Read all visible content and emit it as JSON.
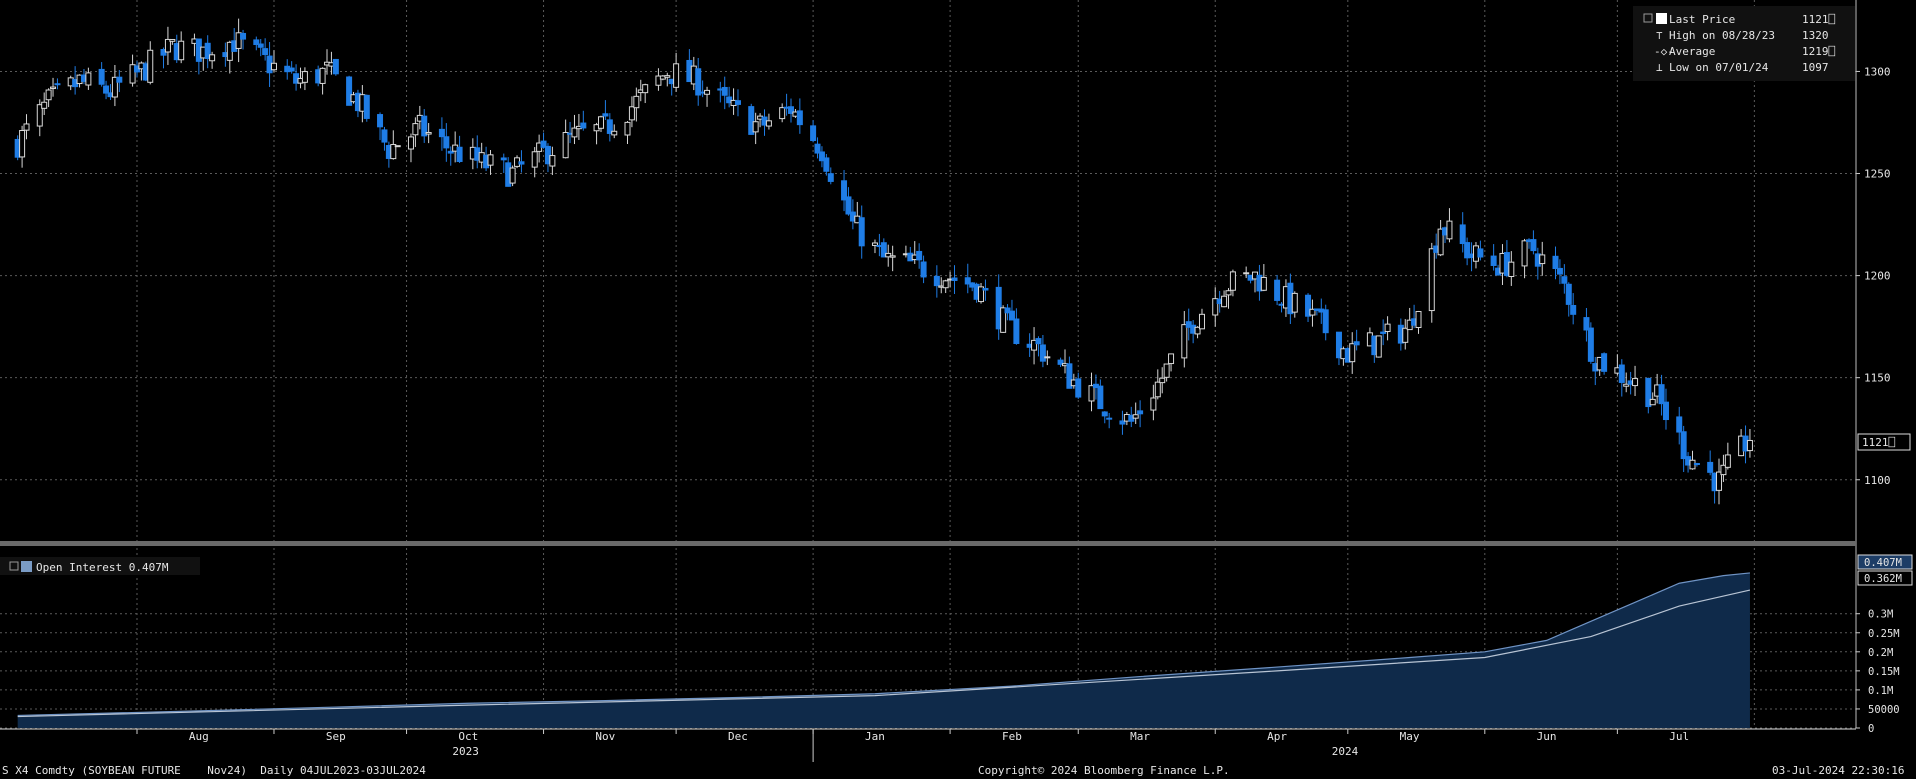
{
  "legend": {
    "rows": [
      {
        "label": "Last Price",
        "value": "1121⎕"
      },
      {
        "label": "High on 08/28/23",
        "value": "1320"
      },
      {
        "label": "Average",
        "value": "1219⎕"
      },
      {
        "label": "Low on 07/01/24",
        "value": "1097"
      }
    ]
  },
  "oi_legend": {
    "label": "Open Interest 0.407M"
  },
  "last_price_tag": "1121⎕",
  "oi_tags": [
    "0.407M",
    "0.362M"
  ],
  "footer": {
    "left": "S X4 Comdty (SOYBEAN FUTURE    Nov24)  Daily 04JUL2023-03JUL2024",
    "center": "Copyright© 2024 Bloomberg Finance L.P.",
    "right": "03-Jul-2024 22:30:16"
  },
  "colors": {
    "background": "#000000",
    "up_candle": "#000000",
    "up_outline": "#d8d8d8",
    "down_candle": "#1f7de6",
    "grid": "#5a5a5a",
    "oi_area": "#0f2a4a",
    "oi_line": "#b8c4d4",
    "text": "#e6e6e6"
  },
  "chart_data": [
    {
      "type": "candlestick",
      "title": "S X4 Comdty (SOYBEAN FUTURE Nov24) Daily",
      "period": "04JUL2023-03JUL2024",
      "ylim": [
        1070,
        1335
      ],
      "yticks": [
        1100,
        1150,
        1200,
        1250,
        1300
      ],
      "grid": true,
      "legend_position": "top-right",
      "x_month_labels": [
        "Aug",
        "Sep",
        "Oct",
        "Nov",
        "Dec",
        "Jan",
        "Feb",
        "Mar",
        "Apr",
        "May",
        "Jun",
        "Jul"
      ],
      "x_year_labels": [
        "2023",
        "2024"
      ],
      "stats": {
        "last": 1121,
        "high": 1320,
        "high_date": "08/28/23",
        "average": 1219,
        "low": 1097,
        "low_date": "07/01/24"
      },
      "close_anchors": [
        [
          "2023-07-05",
          1265
        ],
        [
          "2023-07-12",
          1285
        ],
        [
          "2023-07-19",
          1295
        ],
        [
          "2023-07-26",
          1290
        ],
        [
          "2023-08-02",
          1300
        ],
        [
          "2023-08-09",
          1312
        ],
        [
          "2023-08-16",
          1310
        ],
        [
          "2023-08-23",
          1315
        ],
        [
          "2023-08-30",
          1305
        ],
        [
          "2023-09-06",
          1295
        ],
        [
          "2023-09-13",
          1300
        ],
        [
          "2023-09-20",
          1285
        ],
        [
          "2023-09-27",
          1262
        ],
        [
          "2023-10-04",
          1272
        ],
        [
          "2023-10-11",
          1262
        ],
        [
          "2023-10-18",
          1255
        ],
        [
          "2023-10-25",
          1250
        ],
        [
          "2023-11-01",
          1260
        ],
        [
          "2023-11-08",
          1268
        ],
        [
          "2023-11-15",
          1272
        ],
        [
          "2023-11-22",
          1285
        ],
        [
          "2023-11-29",
          1300
        ],
        [
          "2023-12-06",
          1295
        ],
        [
          "2023-12-13",
          1282
        ],
        [
          "2023-12-20",
          1273
        ],
        [
          "2023-12-27",
          1282
        ],
        [
          "2024-01-03",
          1262
        ],
        [
          "2024-01-10",
          1225
        ],
        [
          "2024-01-17",
          1208
        ],
        [
          "2024-01-24",
          1205
        ],
        [
          "2024-01-31",
          1200
        ],
        [
          "2024-02-07",
          1195
        ],
        [
          "2024-02-14",
          1175
        ],
        [
          "2024-02-21",
          1165
        ],
        [
          "2024-02-28",
          1150
        ],
        [
          "2024-03-06",
          1138
        ],
        [
          "2024-03-13",
          1128
        ],
        [
          "2024-03-20",
          1150
        ],
        [
          "2024-03-27",
          1178
        ],
        [
          "2024-04-03",
          1195
        ],
        [
          "2024-04-10",
          1200
        ],
        [
          "2024-04-17",
          1188
        ],
        [
          "2024-04-24",
          1178
        ],
        [
          "2024-05-01",
          1162
        ],
        [
          "2024-05-08",
          1168
        ],
        [
          "2024-05-15",
          1175
        ],
        [
          "2024-05-22",
          1225
        ],
        [
          "2024-05-29",
          1210
        ],
        [
          "2024-06-05",
          1205
        ],
        [
          "2024-06-12",
          1213
        ],
        [
          "2024-06-19",
          1195
        ],
        [
          "2024-06-26",
          1160
        ],
        [
          "2024-07-03",
          1150
        ],
        [
          "2024-07-10",
          1140
        ],
        [
          "2024-07-17",
          1112
        ],
        [
          "2024-07-24",
          1099
        ],
        [
          "2024-07-31",
          1121
        ]
      ]
    },
    {
      "type": "area",
      "title": "Open Interest",
      "ylim": [
        0,
        0.42
      ],
      "yticks": [
        "0",
        "50000",
        "0.1M",
        "0.15M",
        "0.2M",
        "0.25M",
        "0.3M"
      ],
      "series": [
        {
          "name": "Open Interest",
          "points": [
            [
              "2023-07-05",
              0.033
            ],
            [
              "2023-08-15",
              0.045
            ],
            [
              "2023-09-15",
              0.055
            ],
            [
              "2023-10-15",
              0.065
            ],
            [
              "2023-11-15",
              0.072
            ],
            [
              "2023-12-15",
              0.08
            ],
            [
              "2024-01-15",
              0.09
            ],
            [
              "2024-02-15",
              0.11
            ],
            [
              "2024-03-15",
              0.135
            ],
            [
              "2024-04-15",
              0.16
            ],
            [
              "2024-05-15",
              0.185
            ],
            [
              "2024-06-01",
              0.2
            ],
            [
              "2024-06-15",
              0.23
            ],
            [
              "2024-06-25",
              0.28
            ],
            [
              "2024-07-05",
              0.33
            ],
            [
              "2024-07-15",
              0.38
            ],
            [
              "2024-07-25",
              0.4
            ],
            [
              "2024-07-31",
              0.407
            ]
          ]
        },
        {
          "name": "Average",
          "points": [
            [
              "2023-07-05",
              0.03
            ],
            [
              "2023-10-15",
              0.06
            ],
            [
              "2024-01-15",
              0.085
            ],
            [
              "2024-04-15",
              0.15
            ],
            [
              "2024-06-01",
              0.185
            ],
            [
              "2024-06-25",
              0.24
            ],
            [
              "2024-07-15",
              0.32
            ],
            [
              "2024-07-31",
              0.362
            ]
          ]
        }
      ]
    }
  ]
}
